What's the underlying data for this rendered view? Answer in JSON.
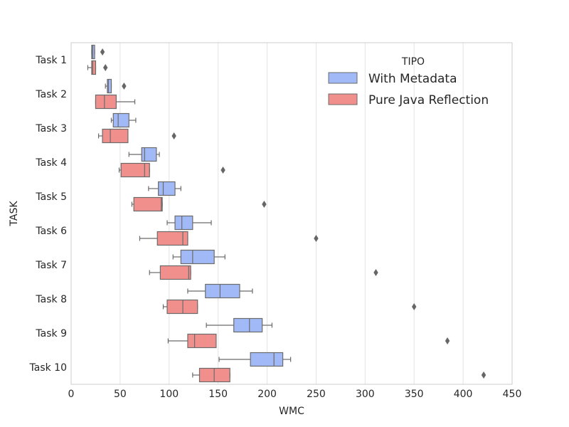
{
  "chart_data": {
    "type": "boxplot",
    "orientation": "horizontal",
    "title": "",
    "xlabel": "WMC",
    "ylabel": "TASK",
    "xlim": [
      0,
      450
    ],
    "xticks": [
      0,
      50,
      100,
      150,
      200,
      250,
      300,
      350,
      400,
      450
    ],
    "grid": "vertical",
    "legend": {
      "title": "TIPO",
      "placement": "top-right"
    },
    "categories": [
      "Task 1",
      "Task 2",
      "Task 3",
      "Task 4",
      "Task 5",
      "Task 6",
      "Task 7",
      "Task 8",
      "Task 9",
      "Task 10"
    ],
    "series": [
      {
        "name": "With Metadata",
        "color": "#a1baf7",
        "boxes": [
          {
            "whislo": 21,
            "q1": 21,
            "med": 22,
            "q3": 24,
            "whishi": 24,
            "fliers": [
              32
            ]
          },
          {
            "whislo": 35,
            "q1": 37,
            "med": 38,
            "q3": 41,
            "whishi": 41,
            "fliers": [
              54
            ]
          },
          {
            "whislo": 41,
            "q1": 43,
            "med": 48,
            "q3": 59,
            "whishi": 66,
            "fliers": []
          },
          {
            "whislo": 59,
            "q1": 72,
            "med": 75,
            "q3": 87,
            "whishi": 90,
            "fliers": []
          },
          {
            "whislo": 79,
            "q1": 89,
            "med": 94,
            "q3": 106,
            "whishi": 112,
            "fliers": []
          },
          {
            "whislo": 98,
            "q1": 106,
            "med": 113,
            "q3": 124,
            "whishi": 143,
            "fliers": []
          },
          {
            "whislo": 104,
            "q1": 112,
            "med": 124,
            "q3": 146,
            "whishi": 157,
            "fliers": []
          },
          {
            "whislo": 119,
            "q1": 137,
            "med": 152,
            "q3": 172,
            "whishi": 185,
            "fliers": []
          },
          {
            "whislo": 138,
            "q1": 166,
            "med": 182,
            "q3": 195,
            "whishi": 205,
            "fliers": []
          },
          {
            "whislo": 151,
            "q1": 183,
            "med": 207,
            "q3": 216,
            "whishi": 224,
            "fliers": []
          }
        ]
      },
      {
        "name": "Pure Java Reflection",
        "color": "#f18f8d",
        "boxes": [
          {
            "whislo": 17,
            "q1": 21,
            "med": 22,
            "q3": 25,
            "whishi": 25,
            "fliers": [
              35
            ]
          },
          {
            "whislo": 25,
            "q1": 25,
            "med": 34,
            "q3": 46,
            "whishi": 65,
            "fliers": []
          },
          {
            "whislo": 28,
            "q1": 32,
            "med": 40,
            "q3": 58,
            "whishi": 58,
            "fliers": [
              105
            ]
          },
          {
            "whislo": 49,
            "q1": 51,
            "med": 75,
            "q3": 80,
            "whishi": 80,
            "fliers": [
              155
            ]
          },
          {
            "whislo": 62,
            "q1": 64,
            "med": 92,
            "q3": 93,
            "whishi": 93,
            "fliers": [
              197
            ]
          },
          {
            "whislo": 70,
            "q1": 88,
            "med": 114,
            "q3": 119,
            "whishi": 119,
            "fliers": [
              250
            ]
          },
          {
            "whislo": 80,
            "q1": 91,
            "med": 120,
            "q3": 122,
            "whishi": 122,
            "fliers": [
              311
            ]
          },
          {
            "whislo": 94,
            "q1": 98,
            "med": 114,
            "q3": 129,
            "whishi": 129,
            "fliers": [
              350
            ]
          },
          {
            "whislo": 99,
            "q1": 119,
            "med": 126,
            "q3": 148,
            "whishi": 148,
            "fliers": [
              384
            ]
          },
          {
            "whislo": 124,
            "q1": 131,
            "med": 146,
            "q3": 162,
            "whishi": 162,
            "fliers": [
              421
            ]
          }
        ]
      }
    ]
  }
}
